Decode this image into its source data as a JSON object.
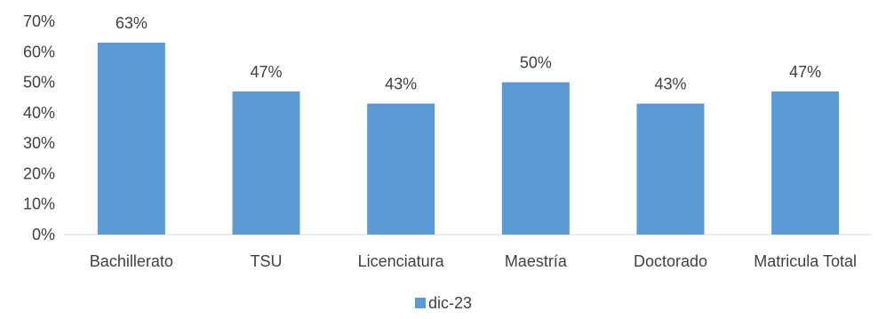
{
  "chart_data": {
    "type": "bar",
    "categories": [
      "Bachillerato",
      "TSU",
      "Licenciatura",
      "Maestría",
      "Doctorado",
      "Matricula Total"
    ],
    "series": [
      {
        "name": "dic-23",
        "values": [
          63,
          47,
          43,
          50,
          43,
          47
        ],
        "color": "#5B9BD5"
      }
    ],
    "data_labels": [
      "63%",
      "47%",
      "43%",
      "50%",
      "43%",
      "47%"
    ],
    "y_ticks": [
      "0%",
      "10%",
      "20%",
      "30%",
      "40%",
      "50%",
      "60%",
      "70%"
    ],
    "ylim": [
      0,
      70
    ],
    "y_unit": "%",
    "grid": false,
    "legend_position": "bottom",
    "title": "",
    "xlabel": "",
    "ylabel": ""
  }
}
